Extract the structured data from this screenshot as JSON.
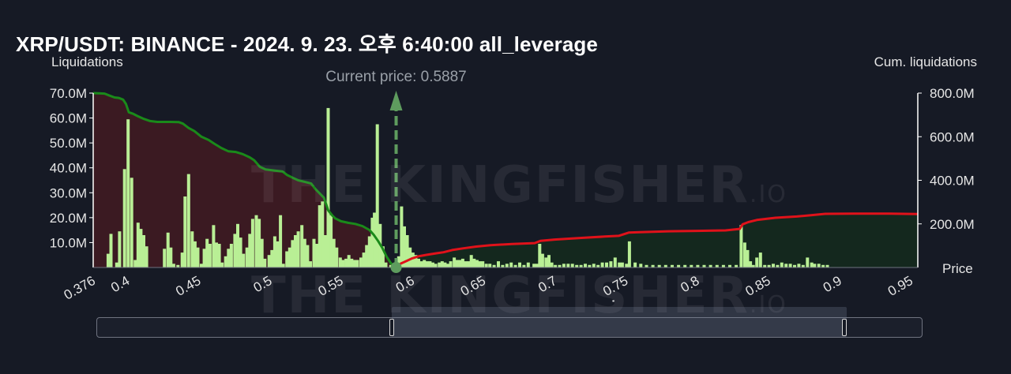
{
  "title": "XRP/USDT: BINANCE - 2024. 9. 23. 오후 6:40:00 all_leverage",
  "watermark": {
    "brand": "THE KINGFISHER",
    "suffix": ".IO"
  },
  "colors": {
    "background": "#161a25",
    "bar_green": "#b9ef95",
    "cum_left_line": "#1a8a1a",
    "cum_right_line": "#e0121a",
    "left_fill": "#3b1a22",
    "right_fill": "#14281e",
    "current_price_marker": "#5e9c5e"
  },
  "chart_data": {
    "type": "bar",
    "title": "XRP/USDT: BINANCE - 2024. 9. 23. 오후 6:40:00 all_leverage",
    "ylabel": "Liquidations",
    "y2label": "Cum. liquidations",
    "xlabel": "Price",
    "xlim": [
      0.376,
      0.955
    ],
    "ylim": [
      0,
      70000000
    ],
    "y2lim": [
      0,
      800000000
    ],
    "x_ticks": [
      "0.376",
      "0.4",
      "0.45",
      "0.5",
      "0.55",
      "0.6",
      "0.65",
      "0.7",
      "0.75",
      "0.8",
      "0.85",
      "0.9",
      "0.95"
    ],
    "y_ticks": [
      "10.0M",
      "20.0M",
      "30.0M",
      "40.0M",
      "50.0M",
      "60.0M",
      "70.0M"
    ],
    "y2_ticks": [
      "200.0M",
      "400.0M",
      "600.0M",
      "800.0M"
    ],
    "current_price": 0.5887,
    "current_price_label": "Current price: 0.5887",
    "bars": [
      [
        0.3865,
        5.5
      ],
      [
        0.3885,
        13.5
      ],
      [
        0.3925,
        2
      ],
      [
        0.3945,
        14.5
      ],
      [
        0.398,
        39.5
      ],
      [
        0.4005,
        59.5
      ],
      [
        0.403,
        36
      ],
      [
        0.4055,
        3
      ],
      [
        0.4075,
        18
      ],
      [
        0.4095,
        15.5
      ],
      [
        0.4115,
        13
      ],
      [
        0.4135,
        8.5
      ],
      [
        0.426,
        7.5
      ],
      [
        0.4285,
        14
      ],
      [
        0.4305,
        8
      ],
      [
        0.4325,
        1.5
      ],
      [
        0.4355,
        1
      ],
      [
        0.4385,
        6
      ],
      [
        0.4405,
        28.5
      ],
      [
        0.443,
        37.5
      ],
      [
        0.4455,
        14.5
      ],
      [
        0.4475,
        10.5
      ],
      [
        0.4495,
        8
      ],
      [
        0.452,
        1.5
      ],
      [
        0.454,
        7.5
      ],
      [
        0.456,
        11.5
      ],
      [
        0.458,
        9.5
      ],
      [
        0.4605,
        17
      ],
      [
        0.4625,
        10
      ],
      [
        0.4645,
        9.5
      ],
      [
        0.4665,
        2
      ],
      [
        0.469,
        4.5
      ],
      [
        0.471,
        7.5
      ],
      [
        0.473,
        9.5
      ],
      [
        0.4755,
        13.5
      ],
      [
        0.4775,
        17.5
      ],
      [
        0.4795,
        12
      ],
      [
        0.4815,
        5.5
      ],
      [
        0.484,
        8
      ],
      [
        0.486,
        13.5
      ],
      [
        0.488,
        19.5
      ],
      [
        0.4905,
        21
      ],
      [
        0.4925,
        19.5
      ],
      [
        0.4945,
        11.5
      ],
      [
        0.4965,
        3.5
      ],
      [
        0.4995,
        5
      ],
      [
        0.5015,
        7
      ],
      [
        0.5035,
        12.5
      ],
      [
        0.5055,
        10.5
      ],
      [
        0.5075,
        21
      ],
      [
        0.5095,
        1.5
      ],
      [
        0.512,
        6.5
      ],
      [
        0.514,
        8
      ],
      [
        0.516,
        11
      ],
      [
        0.518,
        13
      ],
      [
        0.52,
        14.5
      ],
      [
        0.5225,
        17
      ],
      [
        0.5245,
        11.5
      ],
      [
        0.5265,
        9
      ],
      [
        0.5285,
        2.5
      ],
      [
        0.531,
        11.5
      ],
      [
        0.533,
        9.5
      ],
      [
        0.535,
        25
      ],
      [
        0.537,
        26.5
      ],
      [
        0.539,
        13
      ],
      [
        0.541,
        64
      ],
      [
        0.543,
        21
      ],
      [
        0.545,
        11.5
      ],
      [
        0.547,
        8
      ],
      [
        0.5495,
        4
      ],
      [
        0.5515,
        3
      ],
      [
        0.5535,
        3.5
      ],
      [
        0.5555,
        5
      ],
      [
        0.5575,
        3.5
      ],
      [
        0.5595,
        3
      ],
      [
        0.5615,
        3
      ],
      [
        0.564,
        4
      ],
      [
        0.566,
        6
      ],
      [
        0.568,
        9
      ],
      [
        0.57,
        12.5
      ],
      [
        0.572,
        20
      ],
      [
        0.5735,
        22
      ],
      [
        0.5755,
        57.5
      ],
      [
        0.5775,
        17.5
      ],
      [
        0.5795,
        8.5
      ],
      [
        0.5815,
        2
      ],
      [
        0.585,
        1
      ],
      [
        0.5905,
        4.5
      ],
      [
        0.5925,
        24.5
      ],
      [
        0.5945,
        16.5
      ],
      [
        0.5965,
        13
      ],
      [
        0.5985,
        8
      ],
      [
        0.6005,
        6
      ],
      [
        0.6025,
        5
      ],
      [
        0.6045,
        3.5
      ],
      [
        0.6065,
        2.5
      ],
      [
        0.6085,
        3
      ],
      [
        0.6105,
        2.5
      ],
      [
        0.6125,
        2.5
      ],
      [
        0.6145,
        2
      ],
      [
        0.6165,
        1.5
      ],
      [
        0.619,
        2
      ],
      [
        0.621,
        2.5
      ],
      [
        0.623,
        2
      ],
      [
        0.625,
        1.5
      ],
      [
        0.627,
        2.5
      ],
      [
        0.6295,
        4
      ],
      [
        0.6315,
        3
      ],
      [
        0.6335,
        3
      ],
      [
        0.6355,
        3.5
      ],
      [
        0.6375,
        2.5
      ],
      [
        0.6395,
        2.5
      ],
      [
        0.6415,
        5
      ],
      [
        0.6435,
        3.5
      ],
      [
        0.6455,
        3
      ],
      [
        0.6475,
        2.5
      ],
      [
        0.6495,
        2.5
      ],
      [
        0.652,
        1.5
      ],
      [
        0.6545,
        1.5
      ],
      [
        0.6575,
        1
      ],
      [
        0.6605,
        2.5
      ],
      [
        0.6635,
        1
      ],
      [
        0.6665,
        1.5
      ],
      [
        0.6695,
        2
      ],
      [
        0.6725,
        1
      ],
      [
        0.6755,
        2
      ],
      [
        0.6785,
        1
      ],
      [
        0.6815,
        2
      ],
      [
        0.6855,
        1.5
      ],
      [
        0.6875,
        1.5
      ],
      [
        0.6895,
        9.5
      ],
      [
        0.6915,
        5.5
      ],
      [
        0.694,
        4
      ],
      [
        0.696,
        5
      ],
      [
        0.698,
        2
      ],
      [
        0.7005,
        1
      ],
      [
        0.7035,
        1
      ],
      [
        0.7065,
        1.5
      ],
      [
        0.7095,
        1.5
      ],
      [
        0.7125,
        1.5
      ],
      [
        0.7155,
        1
      ],
      [
        0.7185,
        1
      ],
      [
        0.7215,
        1.5
      ],
      [
        0.7245,
        1
      ],
      [
        0.7275,
        1.5
      ],
      [
        0.7305,
        1
      ],
      [
        0.7335,
        2
      ],
      [
        0.7365,
        2
      ],
      [
        0.7395,
        2.5
      ],
      [
        0.7425,
        4
      ],
      [
        0.7455,
        2
      ],
      [
        0.7475,
        2
      ],
      [
        0.7505,
        1.5
      ],
      [
        0.7525,
        10.5
      ],
      [
        0.7565,
        2
      ],
      [
        0.7605,
        1.5
      ],
      [
        0.7645,
        1
      ],
      [
        0.769,
        1
      ],
      [
        0.7735,
        1
      ],
      [
        0.778,
        1
      ],
      [
        0.7825,
        1
      ],
      [
        0.787,
        1
      ],
      [
        0.7915,
        1
      ],
      [
        0.796,
        1
      ],
      [
        0.8005,
        1
      ],
      [
        0.805,
        1
      ],
      [
        0.8095,
        1
      ],
      [
        0.814,
        1
      ],
      [
        0.8185,
        1
      ],
      [
        0.823,
        1
      ],
      [
        0.8275,
        1
      ],
      [
        0.831,
        17
      ],
      [
        0.8335,
        10
      ],
      [
        0.8355,
        7
      ],
      [
        0.8375,
        2.5
      ],
      [
        0.8395,
        1
      ],
      [
        0.842,
        4
      ],
      [
        0.8445,
        6
      ],
      [
        0.8475,
        1
      ],
      [
        0.8505,
        1
      ],
      [
        0.8535,
        1.5
      ],
      [
        0.8565,
        1
      ],
      [
        0.8595,
        2
      ],
      [
        0.8625,
        1.5
      ],
      [
        0.8655,
        1.5
      ],
      [
        0.8685,
        1
      ],
      [
        0.8715,
        1.5
      ],
      [
        0.8745,
        1
      ],
      [
        0.8775,
        4
      ],
      [
        0.8805,
        2
      ],
      [
        0.8825,
        1.5
      ],
      [
        0.8855,
        1.5
      ],
      [
        0.8885,
        1
      ],
      [
        0.8915,
        1
      ]
    ],
    "cum_left": [
      [
        0.376,
        800
      ],
      [
        0.384,
        798
      ],
      [
        0.387,
        790
      ],
      [
        0.391,
        780
      ],
      [
        0.394,
        778
      ],
      [
        0.397,
        770
      ],
      [
        0.399,
        750
      ],
      [
        0.401,
        712
      ],
      [
        0.404,
        705
      ],
      [
        0.407,
        695
      ],
      [
        0.411,
        683
      ],
      [
        0.416,
        672
      ],
      [
        0.421,
        668
      ],
      [
        0.43,
        668
      ],
      [
        0.436,
        667
      ],
      [
        0.439,
        660
      ],
      [
        0.443,
        640
      ],
      [
        0.447,
        626
      ],
      [
        0.452,
        600
      ],
      [
        0.457,
        585
      ],
      [
        0.461,
        568
      ],
      [
        0.466,
        548
      ],
      [
        0.471,
        533
      ],
      [
        0.476,
        530
      ],
      [
        0.481,
        520
      ],
      [
        0.486,
        505
      ],
      [
        0.489,
        492
      ],
      [
        0.493,
        462
      ],
      [
        0.497,
        450
      ],
      [
        0.503,
        445
      ],
      [
        0.509,
        440
      ],
      [
        0.512,
        425
      ],
      [
        0.516,
        412
      ],
      [
        0.52,
        400
      ],
      [
        0.525,
        392
      ],
      [
        0.529,
        385
      ],
      [
        0.532,
        360
      ],
      [
        0.535,
        340
      ],
      [
        0.538,
        320
      ],
      [
        0.541,
        262
      ],
      [
        0.544,
        238
      ],
      [
        0.546,
        225
      ],
      [
        0.55,
        212
      ],
      [
        0.555,
        205
      ],
      [
        0.56,
        200
      ],
      [
        0.565,
        190
      ],
      [
        0.57,
        172
      ],
      [
        0.573,
        150
      ],
      [
        0.576,
        122
      ],
      [
        0.579,
        90
      ],
      [
        0.582,
        50
      ],
      [
        0.585,
        20
      ],
      [
        0.5887,
        0
      ]
    ],
    "cum_right": [
      [
        0.5887,
        0
      ],
      [
        0.592,
        18
      ],
      [
        0.596,
        30
      ],
      [
        0.6,
        42
      ],
      [
        0.605,
        52
      ],
      [
        0.61,
        58
      ],
      [
        0.617,
        65
      ],
      [
        0.622,
        70
      ],
      [
        0.628,
        80
      ],
      [
        0.636,
        88
      ],
      [
        0.645,
        96
      ],
      [
        0.655,
        102
      ],
      [
        0.67,
        108
      ],
      [
        0.686,
        112
      ],
      [
        0.69,
        122
      ],
      [
        0.7,
        128
      ],
      [
        0.71,
        132
      ],
      [
        0.72,
        136
      ],
      [
        0.735,
        142
      ],
      [
        0.745,
        145
      ],
      [
        0.752,
        160
      ],
      [
        0.76,
        162
      ],
      [
        0.78,
        166
      ],
      [
        0.8,
        168
      ],
      [
        0.82,
        170
      ],
      [
        0.83,
        177
      ],
      [
        0.832,
        198
      ],
      [
        0.836,
        208
      ],
      [
        0.842,
        218
      ],
      [
        0.855,
        228
      ],
      [
        0.87,
        234
      ],
      [
        0.88,
        240
      ],
      [
        0.89,
        246
      ],
      [
        0.91,
        247
      ],
      [
        0.935,
        247
      ],
      [
        0.955,
        245
      ]
    ]
  },
  "range_slider": {
    "grip_label": "'''"
  }
}
